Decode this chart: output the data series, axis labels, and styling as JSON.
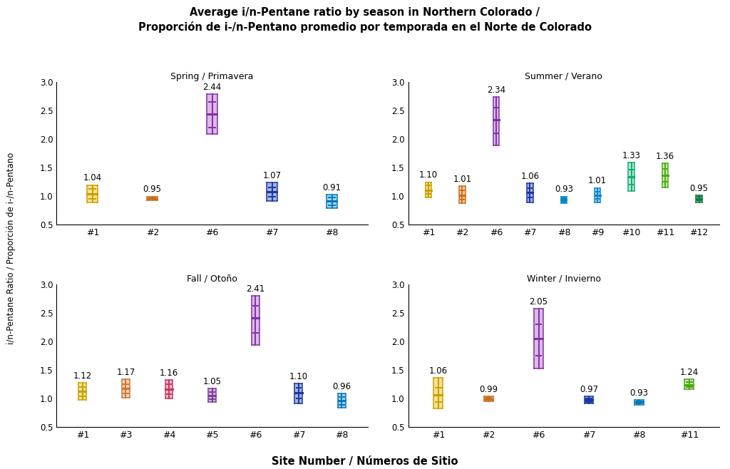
{
  "title_line1": "Average i/n-Pentane ratio by season in Northern Colorado /",
  "title_line2": "Proporción de i-/n-Pentano promedio por temporada en el Norte de Colorado",
  "ylabel": "i/n-Pentane Ratio / Proporción de i-/n-Pentano",
  "xlabel": "Site Number / Números de Sitio",
  "season_titles": [
    "Spring / Primavera",
    "Summer / Verano",
    "Fall / Otoño",
    "Winter / Invierno"
  ],
  "ylim": [
    0.5,
    3.0
  ],
  "spring": {
    "sites": [
      "#1",
      "#2",
      "#6",
      "#7",
      "#8"
    ],
    "means": [
      1.04,
      0.95,
      2.44,
      1.07,
      0.91
    ],
    "q1": [
      0.95,
      0.93,
      2.2,
      0.99,
      0.84
    ],
    "q3": [
      1.12,
      0.97,
      2.65,
      1.15,
      0.97
    ],
    "whislo": [
      0.88,
      0.92,
      2.08,
      0.91,
      0.78
    ],
    "whishi": [
      1.19,
      0.99,
      2.78,
      1.23,
      1.02
    ],
    "colors": [
      "#f5d76e",
      "#f5b87e",
      "#d4a0e0",
      "#8898d8",
      "#80c8ec"
    ],
    "edge_colors": [
      "#c8a000",
      "#c87020",
      "#8030a8",
      "#1838a0",
      "#0878b8"
    ]
  },
  "summer": {
    "sites": [
      "#1",
      "#2",
      "#6",
      "#7",
      "#8",
      "#9",
      "#10",
      "#11",
      "#12"
    ],
    "means": [
      1.1,
      1.01,
      2.34,
      1.06,
      0.93,
      1.01,
      1.33,
      1.36,
      0.95
    ],
    "q1": [
      1.03,
      0.93,
      2.1,
      0.97,
      0.9,
      0.95,
      1.2,
      1.25,
      0.92
    ],
    "q3": [
      1.18,
      1.1,
      2.55,
      1.14,
      0.96,
      1.07,
      1.46,
      1.47,
      0.98
    ],
    "whislo": [
      0.97,
      0.87,
      1.88,
      0.88,
      0.87,
      0.89,
      1.08,
      1.15,
      0.89
    ],
    "whishi": [
      1.24,
      1.17,
      2.73,
      1.22,
      0.99,
      1.14,
      1.58,
      1.57,
      1.01
    ],
    "colors": [
      "#f5d76e",
      "#f5b87e",
      "#d4a0e0",
      "#8898d8",
      "#88d8f5",
      "#88c8e8",
      "#90e8c8",
      "#b0e888",
      "#38c068"
    ],
    "edge_colors": [
      "#c8a000",
      "#c87020",
      "#8030a8",
      "#1838a0",
      "#0888c0",
      "#0888c0",
      "#18a870",
      "#50a818",
      "#187840"
    ]
  },
  "fall": {
    "sites": [
      "#1",
      "#3",
      "#4",
      "#5",
      "#6",
      "#7",
      "#8"
    ],
    "means": [
      1.12,
      1.17,
      1.16,
      1.05,
      2.41,
      1.1,
      0.96
    ],
    "q1": [
      1.04,
      1.08,
      1.07,
      0.99,
      2.15,
      1.0,
      0.89
    ],
    "q3": [
      1.2,
      1.25,
      1.25,
      1.11,
      2.62,
      1.18,
      1.02
    ],
    "whislo": [
      0.97,
      1.01,
      1.0,
      0.93,
      1.93,
      0.91,
      0.83
    ],
    "whishi": [
      1.27,
      1.33,
      1.32,
      1.17,
      2.8,
      1.26,
      1.08
    ],
    "colors": [
      "#f5d76e",
      "#f5c098",
      "#f5a0b8",
      "#d098d0",
      "#d4a0e0",
      "#8898d8",
      "#80c8ec"
    ],
    "edge_colors": [
      "#c8a000",
      "#c87838",
      "#c03860",
      "#784098",
      "#8030a8",
      "#1838a0",
      "#0878b8"
    ]
  },
  "winter": {
    "sites": [
      "#1",
      "#2",
      "#6",
      "#7",
      "#8",
      "#11"
    ],
    "means": [
      1.06,
      0.99,
      2.05,
      0.97,
      0.93,
      1.24
    ],
    "q1": [
      0.93,
      0.97,
      1.75,
      0.94,
      0.91,
      1.2
    ],
    "q3": [
      1.18,
      1.01,
      2.3,
      1.0,
      0.95,
      1.28
    ],
    "whislo": [
      0.82,
      0.95,
      1.52,
      0.91,
      0.89,
      1.16
    ],
    "whishi": [
      1.36,
      1.03,
      2.57,
      1.03,
      0.97,
      1.33
    ],
    "colors": [
      "#f5d76e",
      "#f5b87e",
      "#d4a0e0",
      "#8898d8",
      "#80c8ec",
      "#b0e888"
    ],
    "edge_colors": [
      "#c8a000",
      "#c87020",
      "#8030a8",
      "#1838a0",
      "#0878b8",
      "#50a818"
    ]
  }
}
